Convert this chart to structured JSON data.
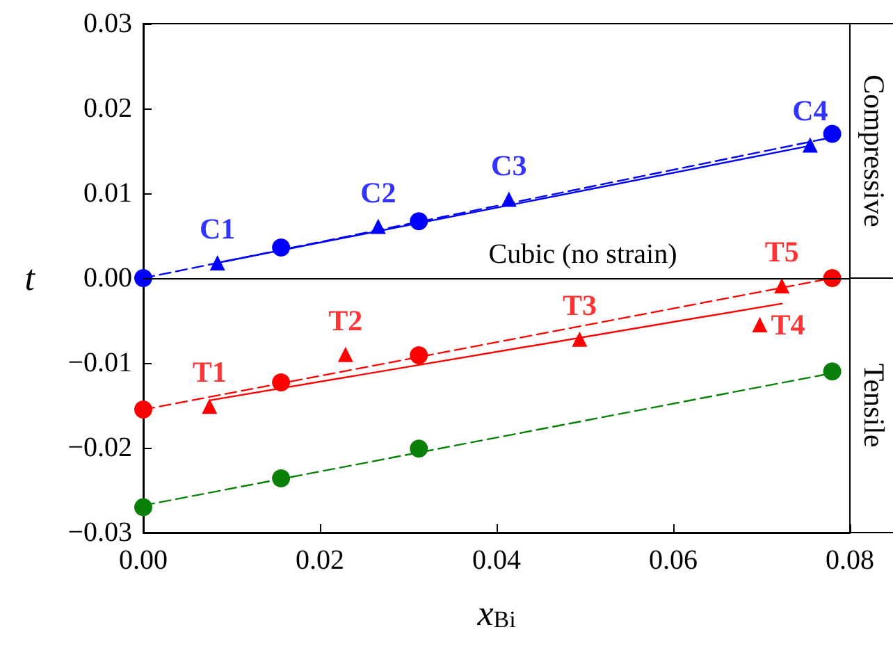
{
  "chart_data": {
    "type": "scatter",
    "xlabel": "x$_{Bi}$",
    "ylabel": "t",
    "xlim": [
      0,
      0.08
    ],
    "xticks": [
      {
        "value": 0,
        "label": "0.00"
      },
      {
        "value": 0.02,
        "label": "0.02"
      },
      {
        "value": 0.04,
        "label": "0.04"
      },
      {
        "value": 0.06,
        "label": "0.06"
      },
      {
        "value": 0.08,
        "label": "0.08"
      }
    ],
    "ylim": [
      -0.03,
      0.03
    ],
    "yticks": [
      {
        "value": -0.03,
        "label": "−0.03"
      },
      {
        "value": -0.02,
        "label": "−0.02"
      },
      {
        "value": -0.01,
        "label": "−0.01"
      },
      {
        "value": 0,
        "label": "0.00"
      },
      {
        "value": 0.01,
        "label": "0.01"
      },
      {
        "value": 0.02,
        "label": "0.02"
      },
      {
        "value": 0.03,
        "label": "0.03"
      }
    ],
    "grid": false,
    "series": [
      {
        "type": "line",
        "color": "#0000ff",
        "line_style": "dashed",
        "marker": "none",
        "x": [
          0,
          0.078
        ],
        "values": [
          0,
          0.0166
        ]
      },
      {
        "type": "line",
        "color": "#0000ff",
        "line_style": "solid",
        "marker": "none",
        "x": [
          0.0084,
          0.0755
        ],
        "values": [
          0.0018,
          0.0156
        ]
      },
      {
        "type": "line",
        "color": "#ff0000",
        "line_style": "dashed",
        "marker": "none",
        "x": [
          0,
          0.078
        ],
        "values": [
          -0.0155,
          0
        ]
      },
      {
        "type": "line",
        "color": "#ff0000",
        "line_style": "solid",
        "marker": "none",
        "x": [
          0.0076,
          0.0723
        ],
        "values": [
          -0.0144,
          -0.003
        ]
      },
      {
        "type": "line",
        "color": "#0a800a",
        "line_style": "dashed",
        "marker": "none",
        "x": [
          0,
          0.078
        ],
        "values": [
          -0.0268,
          -0.0112
        ]
      },
      {
        "color": "#0000ff",
        "marker": "circle",
        "x": [
          0,
          0.0156,
          0.0312,
          0.078
        ],
        "values": [
          0,
          0.0036,
          0.0067,
          0.017
        ]
      },
      {
        "color": "#0000ff",
        "marker": "triangle",
        "x": [
          0.0084,
          0.0266,
          0.0414,
          0.0755
        ],
        "values": [
          0.0018,
          0.0061,
          0.0093,
          0.0157
        ]
      },
      {
        "color": "#ff0000",
        "marker": "circle",
        "x": [
          0,
          0.0156,
          0.0312,
          0.078
        ],
        "values": [
          -0.0155,
          -0.0123,
          -0.0091,
          0
        ]
      },
      {
        "color": "#ff0000",
        "marker": "triangle",
        "x": [
          0.0075,
          0.0229,
          0.0494,
          0.0698,
          0.0723
        ],
        "values": [
          -0.0151,
          -0.009,
          -0.0072,
          -0.0055,
          -0.0009
        ]
      },
      {
        "color": "#0a800a",
        "marker": "circle",
        "x": [
          0,
          0.0156,
          0.0312,
          0.078
        ],
        "values": [
          -0.027,
          -0.0236,
          -0.0201,
          -0.011
        ]
      }
    ],
    "ref_lines": [
      {
        "axis": "y",
        "value": 0,
        "label": "Cubic (no strain)",
        "color": "#000000"
      }
    ],
    "annotations": [
      {
        "text": "C1",
        "x": 0.0084,
        "y": 0.0018
      },
      {
        "text": "C2",
        "x": 0.0266,
        "y": 0.0061
      },
      {
        "text": "C3",
        "x": 0.0414,
        "y": 0.0093
      },
      {
        "text": "C4",
        "x": 0.0755,
        "y": 0.0157
      },
      {
        "text": "T1",
        "x": 0.0075,
        "y": -0.0151
      },
      {
        "text": "T2",
        "x": 0.0229,
        "y": -0.009
      },
      {
        "text": "T3",
        "x": 0.0494,
        "y": -0.0072
      },
      {
        "text": "T4",
        "x": 0.0698,
        "y": -0.0055
      },
      {
        "text": "T5",
        "x": 0.0723,
        "y": -0.0009
      },
      "Compressive",
      "Tensile"
    ]
  }
}
